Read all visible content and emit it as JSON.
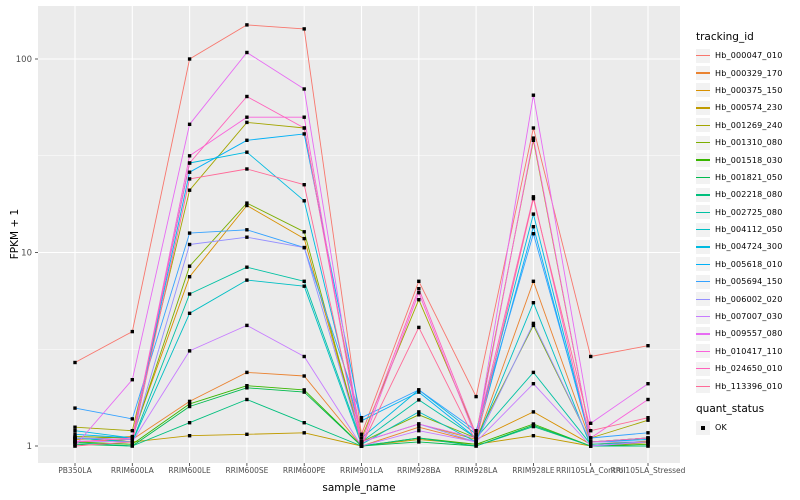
{
  "chart_data": {
    "type": "line",
    "title": "",
    "xlabel": "sample_name",
    "ylabel": "FPKM + 1",
    "y_scale": "log10",
    "y_ticks": [
      1,
      10,
      100
    ],
    "y_minor_ticks": [
      3.1623,
      31.6228
    ],
    "ylim_log10": [
      -0.088,
      2.274
    ],
    "grid": true,
    "legend_position": "right",
    "marker": "black-square",
    "x_categories": [
      "PB350LA",
      "RRIM600LA",
      "RRIM600LE",
      "RRIM600SE",
      "RRIM600PE",
      "RRIM901LA",
      "RRIM928BA",
      "RRIM928LA",
      "RRIM928LE",
      "RRII105LA_Control",
      "RRII105LA_Stressed"
    ],
    "series": [
      {
        "name": "Hb_000047_010",
        "color": "#F8766D",
        "values": [
          2.7,
          3.9,
          100,
          150,
          143,
          1.15,
          7.1,
          1.8,
          44,
          2.9,
          3.3
        ]
      },
      {
        "name": "Hb_000329_170",
        "color": "#EA8331",
        "values": [
          1.05,
          1.08,
          1.7,
          2.4,
          2.3,
          1.0,
          1.25,
          1.05,
          7.1,
          1.05,
          1.1
        ]
      },
      {
        "name": "Hb_000375_150",
        "color": "#D89000",
        "values": [
          1.08,
          1.12,
          7.5,
          17.5,
          11.8,
          1.05,
          1.3,
          1.08,
          1.5,
          1.02,
          1.06
        ]
      },
      {
        "name": "Hb_000574_230",
        "color": "#C09B00",
        "values": [
          1.1,
          1.05,
          1.13,
          1.15,
          1.17,
          1.0,
          1.08,
          1.02,
          1.13,
          1.0,
          1.04
        ]
      },
      {
        "name": "Hb_001269_240",
        "color": "#A3A500",
        "values": [
          1.25,
          1.2,
          21,
          47,
          44,
          1.1,
          5.7,
          1.15,
          38,
          1.1,
          1.36
        ]
      },
      {
        "name": "Hb_001310_080",
        "color": "#7CAE00",
        "values": [
          1.12,
          1.1,
          8.5,
          18,
          12.8,
          1.05,
          1.45,
          1.1,
          4.2,
          1.05,
          1.1
        ]
      },
      {
        "name": "Hb_001518_030",
        "color": "#39B600",
        "values": [
          1.05,
          1.02,
          1.65,
          2.05,
          1.95,
          1.0,
          1.1,
          1.02,
          1.3,
          1.0,
          1.02
        ]
      },
      {
        "name": "Hb_001821_050",
        "color": "#00BB4E",
        "values": [
          1.02,
          1.0,
          1.6,
          2.0,
          1.9,
          1.0,
          1.05,
          1.0,
          1.28,
          1.0,
          1.0
        ]
      },
      {
        "name": "Hb_002218_080",
        "color": "#00BF7D",
        "values": [
          1.04,
          1.0,
          1.32,
          1.74,
          1.32,
          1.0,
          1.1,
          1.0,
          1.26,
          1.0,
          1.0
        ]
      },
      {
        "name": "Hb_002725_080",
        "color": "#00C1A3",
        "values": [
          1.1,
          1.05,
          6.1,
          8.4,
          7.1,
          1.05,
          1.73,
          1.1,
          2.4,
          1.02,
          1.05
        ]
      },
      {
        "name": "Hb_004112_050",
        "color": "#00BFC4",
        "values": [
          1.1,
          1.05,
          4.85,
          7.2,
          6.7,
          1.02,
          1.5,
          1.05,
          5.5,
          1.0,
          1.05
        ]
      },
      {
        "name": "Hb_004724_300",
        "color": "#00BAE0",
        "values": [
          1.2,
          1.1,
          29,
          33,
          18.5,
          1.1,
          1.95,
          1.15,
          15.8,
          1.05,
          1.1
        ]
      },
      {
        "name": "Hb_005618_010",
        "color": "#00B0F6",
        "values": [
          1.15,
          1.1,
          26,
          38,
          41,
          1.35,
          1.9,
          1.1,
          13.6,
          1.05,
          1.08
        ]
      },
      {
        "name": "Hb_005694_150",
        "color": "#35A2FF",
        "values": [
          1.57,
          1.38,
          12.6,
          13.1,
          10.6,
          1.4,
          1.95,
          1.2,
          12.5,
          1.1,
          1.17
        ]
      },
      {
        "name": "Hb_006002_020",
        "color": "#9590FF",
        "values": [
          1.1,
          1.08,
          11,
          12,
          10.6,
          1.05,
          1.3,
          1.05,
          4.3,
          1.05,
          1.05
        ]
      },
      {
        "name": "Hb_007007_030",
        "color": "#C77CFF",
        "values": [
          1.06,
          1.05,
          3.1,
          4.2,
          2.9,
          1.0,
          1.2,
          1.05,
          2.1,
          1.0,
          1.05
        ]
      },
      {
        "name": "Hb_009557_080",
        "color": "#E76BF3",
        "values": [
          1.0,
          2.2,
          46,
          108,
          70,
          1.05,
          1.3,
          1.1,
          65,
          1.31,
          2.1
        ]
      },
      {
        "name": "Hb_010417_110",
        "color": "#FA62DB",
        "values": [
          1.05,
          1.1,
          31.6,
          50,
          50,
          1.0,
          6.2,
          1.1,
          39,
          1.1,
          1.74
        ]
      },
      {
        "name": "Hb_024650_010",
        "color": "#FF62BC",
        "values": [
          1.05,
          1.1,
          29,
          64,
          44,
          1.05,
          6.5,
          1.15,
          19.4,
          1.05,
          1.1
        ]
      },
      {
        "name": "Hb_113396_010",
        "color": "#FF6A98",
        "values": [
          1.0,
          1.05,
          24,
          27,
          22.4,
          1.0,
          4.1,
          1.05,
          19,
          1.2,
          1.4
        ]
      }
    ]
  },
  "legend": {
    "tracking_title": "tracking_id",
    "quant_title": "quant_status",
    "quant_label": "OK"
  },
  "colors": {
    "background": "#FFFFFF",
    "panel": "#EBEBEB",
    "grid": "#FFFFFF",
    "axis_text": "#4D4D4D",
    "tick_mark": "#333333",
    "title_text": "#000000",
    "legend_key_bg": "#F2F2F2",
    "point": "#000000"
  }
}
